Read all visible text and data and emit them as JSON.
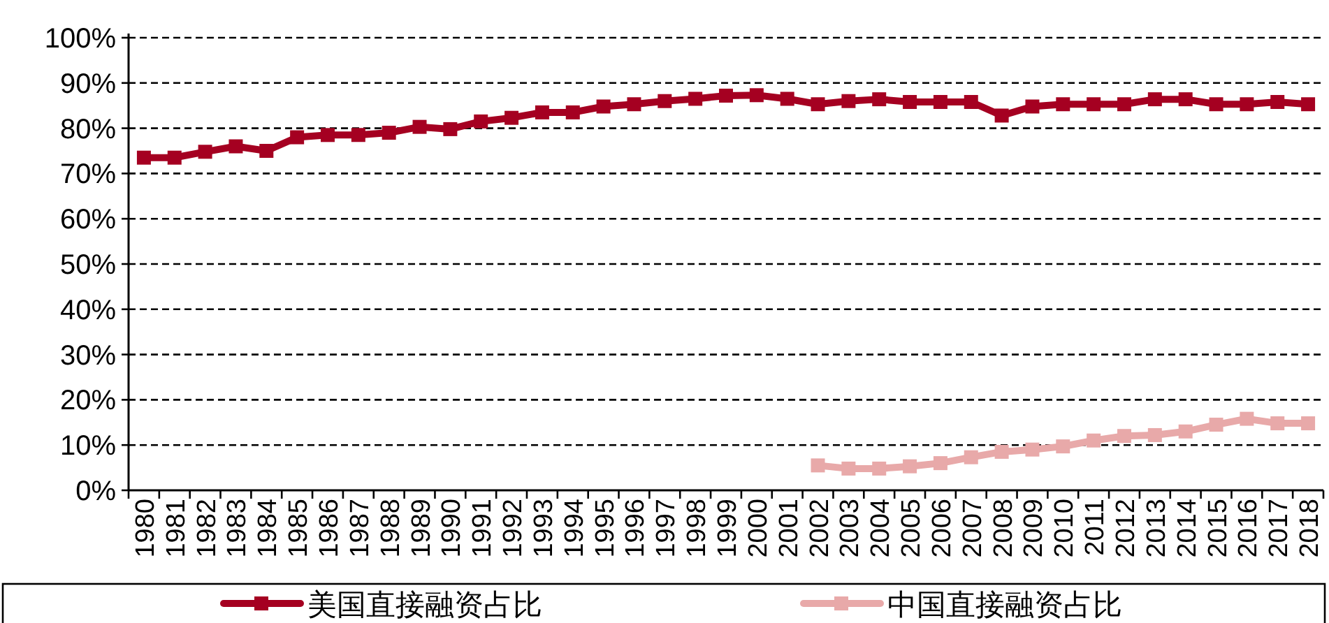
{
  "chart_data": {
    "type": "line",
    "categories": [
      "1980",
      "1981",
      "1982",
      "1983",
      "1984",
      "1985",
      "1986",
      "1987",
      "1988",
      "1989",
      "1990",
      "1991",
      "1992",
      "1993",
      "1994",
      "1995",
      "1996",
      "1997",
      "1998",
      "1999",
      "2000",
      "2001",
      "2002",
      "2003",
      "2004",
      "2005",
      "2006",
      "2007",
      "2008",
      "2009",
      "2010",
      "2011",
      "2012",
      "2013",
      "2014",
      "2015",
      "2016",
      "2017",
      "2018"
    ],
    "series": [
      {
        "name": "美国直接融资占比",
        "color": "#a50021",
        "values": [
          73.5,
          73.5,
          74.8,
          76,
          75,
          78,
          78.5,
          78.5,
          79,
          80.3,
          79.8,
          81.5,
          82.3,
          83.5,
          83.5,
          84.8,
          85.3,
          86,
          86.5,
          87.2,
          87.3,
          86.5,
          85.3,
          86,
          86.4,
          85.8,
          85.8,
          85.8,
          82.8,
          84.8,
          85.3,
          85.3,
          85.3,
          86.4,
          86.4,
          85.3,
          85.3,
          85.8,
          85.3
        ]
      },
      {
        "name": "中国直接融资占比",
        "color": "#e8a9a9",
        "values": [
          null,
          null,
          null,
          null,
          null,
          null,
          null,
          null,
          null,
          null,
          null,
          null,
          null,
          null,
          null,
          null,
          null,
          null,
          null,
          null,
          null,
          null,
          5.5,
          4.8,
          4.8,
          5.3,
          6,
          7.3,
          8.5,
          9,
          9.7,
          11,
          12,
          12.2,
          13,
          14.5,
          15.8,
          14.8,
          14.8
        ]
      }
    ],
    "ylim": [
      0,
      100
    ],
    "yticks": [
      {
        "value": 0,
        "label": "0%"
      },
      {
        "value": 10,
        "label": "10%"
      },
      {
        "value": 20,
        "label": "20%"
      },
      {
        "value": 30,
        "label": "30%"
      },
      {
        "value": 40,
        "label": "40%"
      },
      {
        "value": 50,
        "label": "50%"
      },
      {
        "value": 60,
        "label": "60%"
      },
      {
        "value": 70,
        "label": "70%"
      },
      {
        "value": 80,
        "label": "80%"
      },
      {
        "value": 90,
        "label": "90%"
      },
      {
        "value": 100,
        "label": "100%"
      }
    ],
    "grid": "y",
    "legend": "bottom",
    "marker": "square",
    "line_style": "solid"
  }
}
